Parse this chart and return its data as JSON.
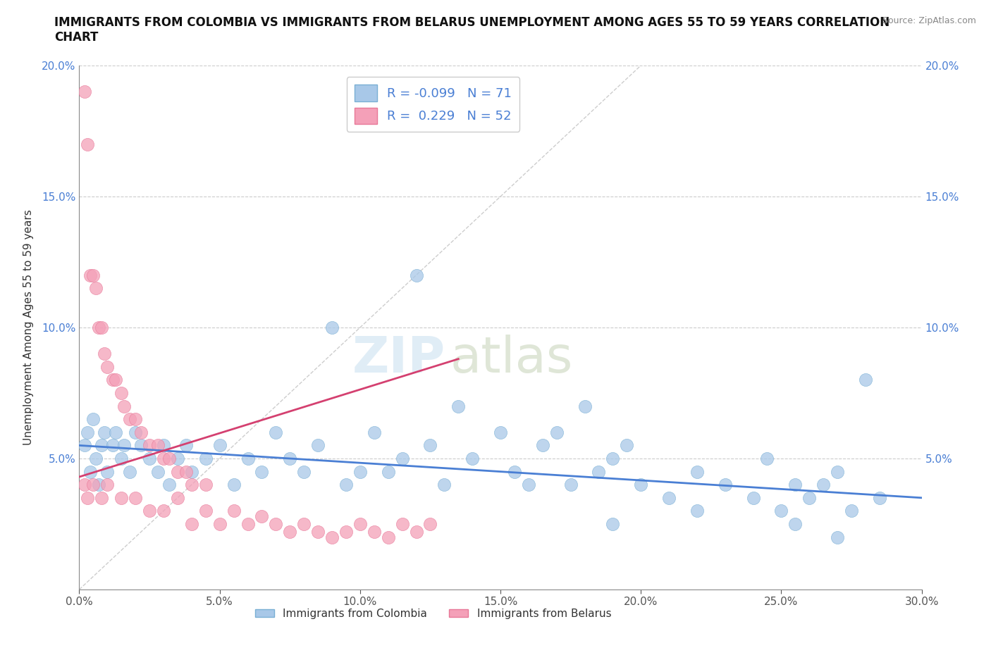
{
  "title": "IMMIGRANTS FROM COLOMBIA VS IMMIGRANTS FROM BELARUS UNEMPLOYMENT AMONG AGES 55 TO 59 YEARS CORRELATION\nCHART",
  "source_text": "Source: ZipAtlas.com",
  "watermark_zip": "ZIP",
  "watermark_atlas": "atlas",
  "ylabel": "Unemployment Among Ages 55 to 59 years",
  "xlim": [
    0,
    0.3
  ],
  "ylim": [
    0,
    0.2
  ],
  "colombia_color": "#a8c8e8",
  "belarus_color": "#f4a0b8",
  "colombia_edge": "#7aafd4",
  "belarus_edge": "#e87898",
  "colombia_line_color": "#4a7fd4",
  "belarus_line_color": "#d44070",
  "ref_line_color": "#c8c8c8",
  "colombia_legend": "Immigrants from Colombia",
  "belarus_legend": "Immigrants from Belarus",
  "R_colombia": -0.099,
  "N_colombia": 71,
  "R_belarus": 0.229,
  "N_belarus": 52,
  "colombia_trend_x": [
    0.0,
    0.3
  ],
  "colombia_trend_y": [
    0.055,
    0.035
  ],
  "belarus_trend_x": [
    0.0,
    0.135
  ],
  "belarus_trend_y": [
    0.043,
    0.088
  ],
  "colombia_x": [
    0.002,
    0.003,
    0.004,
    0.005,
    0.006,
    0.007,
    0.008,
    0.009,
    0.01,
    0.012,
    0.013,
    0.015,
    0.016,
    0.018,
    0.02,
    0.022,
    0.025,
    0.028,
    0.03,
    0.032,
    0.035,
    0.038,
    0.04,
    0.045,
    0.05,
    0.055,
    0.06,
    0.065,
    0.07,
    0.075,
    0.08,
    0.085,
    0.09,
    0.095,
    0.1,
    0.105,
    0.11,
    0.115,
    0.12,
    0.125,
    0.13,
    0.135,
    0.14,
    0.15,
    0.155,
    0.16,
    0.165,
    0.17,
    0.175,
    0.18,
    0.185,
    0.19,
    0.195,
    0.2,
    0.21,
    0.22,
    0.23,
    0.24,
    0.245,
    0.25,
    0.255,
    0.26,
    0.265,
    0.27,
    0.275,
    0.28,
    0.285,
    0.19,
    0.22,
    0.255,
    0.27
  ],
  "colombia_y": [
    0.055,
    0.06,
    0.045,
    0.065,
    0.05,
    0.04,
    0.055,
    0.06,
    0.045,
    0.055,
    0.06,
    0.05,
    0.055,
    0.045,
    0.06,
    0.055,
    0.05,
    0.045,
    0.055,
    0.04,
    0.05,
    0.055,
    0.045,
    0.05,
    0.055,
    0.04,
    0.05,
    0.045,
    0.06,
    0.05,
    0.045,
    0.055,
    0.1,
    0.04,
    0.045,
    0.06,
    0.045,
    0.05,
    0.12,
    0.055,
    0.04,
    0.07,
    0.05,
    0.06,
    0.045,
    0.04,
    0.055,
    0.06,
    0.04,
    0.07,
    0.045,
    0.05,
    0.055,
    0.04,
    0.035,
    0.045,
    0.04,
    0.035,
    0.05,
    0.03,
    0.04,
    0.035,
    0.04,
    0.045,
    0.03,
    0.08,
    0.035,
    0.025,
    0.03,
    0.025,
    0.02
  ],
  "belarus_x": [
    0.002,
    0.003,
    0.004,
    0.005,
    0.006,
    0.007,
    0.008,
    0.009,
    0.01,
    0.012,
    0.013,
    0.015,
    0.016,
    0.018,
    0.02,
    0.022,
    0.025,
    0.028,
    0.03,
    0.032,
    0.035,
    0.038,
    0.04,
    0.045,
    0.002,
    0.003,
    0.005,
    0.008,
    0.01,
    0.015,
    0.02,
    0.025,
    0.03,
    0.035,
    0.04,
    0.045,
    0.05,
    0.055,
    0.06,
    0.065,
    0.07,
    0.075,
    0.08,
    0.085,
    0.09,
    0.095,
    0.1,
    0.105,
    0.11,
    0.115,
    0.12,
    0.125
  ],
  "belarus_y": [
    0.19,
    0.17,
    0.12,
    0.12,
    0.115,
    0.1,
    0.1,
    0.09,
    0.085,
    0.08,
    0.08,
    0.075,
    0.07,
    0.065,
    0.065,
    0.06,
    0.055,
    0.055,
    0.05,
    0.05,
    0.045,
    0.045,
    0.04,
    0.04,
    0.04,
    0.035,
    0.04,
    0.035,
    0.04,
    0.035,
    0.035,
    0.03,
    0.03,
    0.035,
    0.025,
    0.03,
    0.025,
    0.03,
    0.025,
    0.028,
    0.025,
    0.022,
    0.025,
    0.022,
    0.02,
    0.022,
    0.025,
    0.022,
    0.02,
    0.025,
    0.022,
    0.025
  ]
}
